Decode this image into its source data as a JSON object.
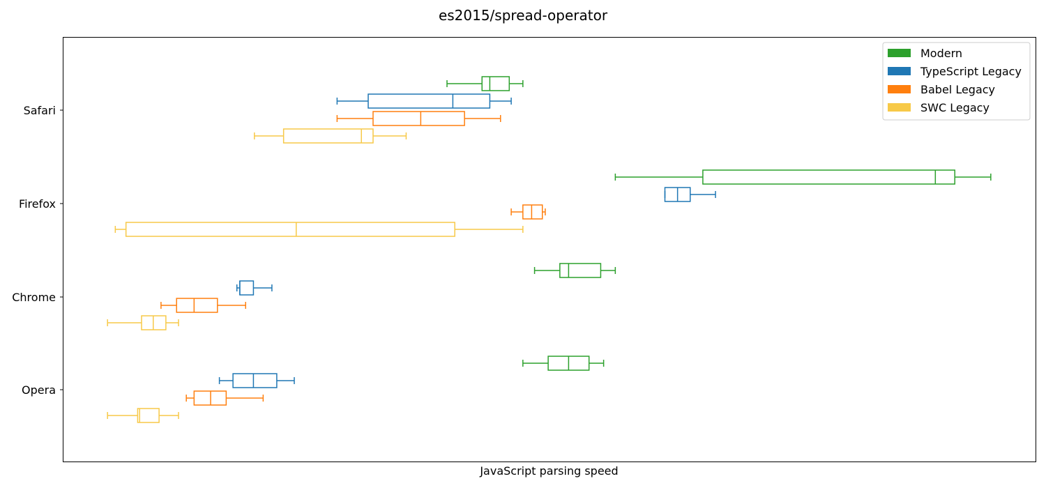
{
  "chart_data": {
    "type": "boxplot",
    "orientation": "horizontal",
    "title": "es2015/spread-operator",
    "xlabel": "JavaScript parsing speed",
    "ylabel": "",
    "x_ticks_shown": false,
    "xlim": [
      0,
      100
    ],
    "categories": [
      "Safari",
      "Firefox",
      "Chrome",
      "Opera"
    ],
    "legend": {
      "placement": "top-right"
    },
    "series": [
      {
        "name": "Modern",
        "color": "#2ca02c",
        "boxes": [
          {
            "category": "Safari",
            "whislo": 39.5,
            "q1": 43.1,
            "med": 43.9,
            "q3": 45.9,
            "whishi": 47.3
          },
          {
            "category": "Firefox",
            "whislo": 56.8,
            "q1": 65.8,
            "med": 89.7,
            "q3": 91.7,
            "whishi": 95.4
          },
          {
            "category": "Chrome",
            "whislo": 48.5,
            "q1": 51.1,
            "med": 52.0,
            "q3": 55.3,
            "whishi": 56.8
          },
          {
            "category": "Opera",
            "whislo": 47.3,
            "q1": 49.9,
            "med": 52.0,
            "q3": 54.1,
            "whishi": 55.6
          }
        ]
      },
      {
        "name": "TypeScript Legacy",
        "color": "#1f77b4",
        "boxes": [
          {
            "category": "Safari",
            "whislo": 28.2,
            "q1": 31.4,
            "med": 40.1,
            "q3": 43.9,
            "whishi": 46.1
          },
          {
            "category": "Firefox",
            "whislo": 61.9,
            "q1": 61.9,
            "med": 63.2,
            "q3": 64.5,
            "whishi": 67.1
          },
          {
            "category": "Chrome",
            "whislo": 17.9,
            "q1": 18.2,
            "med": 18.2,
            "q3": 19.6,
            "whishi": 21.5
          },
          {
            "category": "Opera",
            "whislo": 16.1,
            "q1": 17.5,
            "med": 19.6,
            "q3": 22.0,
            "whishi": 23.8
          }
        ]
      },
      {
        "name": "Babel Legacy",
        "color": "#ff7f0e",
        "boxes": [
          {
            "category": "Safari",
            "whislo": 28.2,
            "q1": 31.9,
            "med": 36.8,
            "q3": 41.3,
            "whishi": 45.0
          },
          {
            "category": "Firefox",
            "whislo": 46.1,
            "q1": 47.3,
            "med": 48.2,
            "q3": 49.3,
            "whishi": 49.6
          },
          {
            "category": "Chrome",
            "whislo": 10.1,
            "q1": 11.7,
            "med": 13.5,
            "q3": 15.9,
            "whishi": 18.8
          },
          {
            "category": "Opera",
            "whislo": 12.7,
            "q1": 13.5,
            "med": 15.2,
            "q3": 16.8,
            "whishi": 20.6
          }
        ]
      },
      {
        "name": "SWC Legacy",
        "color": "#f7c948",
        "boxes": [
          {
            "category": "Safari",
            "whislo": 19.7,
            "q1": 22.7,
            "med": 30.7,
            "q3": 31.9,
            "whishi": 35.3
          },
          {
            "category": "Firefox",
            "whislo": 5.4,
            "q1": 6.5,
            "med": 24.0,
            "q3": 40.3,
            "whishi": 47.3
          },
          {
            "category": "Chrome",
            "whislo": 4.6,
            "q1": 8.1,
            "med": 9.3,
            "q3": 10.6,
            "whishi": 11.9
          },
          {
            "category": "Opera",
            "whislo": 4.6,
            "q1": 7.7,
            "med": 7.9,
            "q3": 9.9,
            "whishi": 11.9
          }
        ]
      }
    ]
  }
}
